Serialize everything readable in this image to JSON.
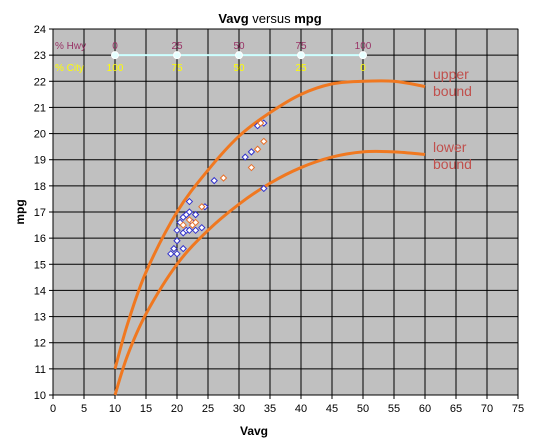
{
  "chart_data": {
    "type": "scatter",
    "title_parts": [
      "Vavg",
      " versus ",
      "mpg"
    ],
    "xlabel": "Vavg",
    "ylabel": "mpg",
    "xlim": [
      0,
      75
    ],
    "ylim": [
      10,
      24
    ],
    "x_ticks": [
      0,
      5,
      10,
      15,
      20,
      25,
      30,
      35,
      40,
      45,
      50,
      55,
      60,
      65,
      70,
      75
    ],
    "y_ticks": [
      10,
      11,
      12,
      13,
      14,
      15,
      16,
      17,
      18,
      19,
      20,
      21,
      22,
      23,
      24
    ],
    "grid": true,
    "plot_background": "#c0c0c0",
    "mix_scale": {
      "hwy_label": "% Hwy",
      "city_label": "% City",
      "y": 23,
      "x": [
        10,
        20,
        30,
        40,
        50
      ],
      "hwy": [
        "0",
        "25",
        "50",
        "75",
        "100"
      ],
      "city": [
        "100",
        "75",
        "50",
        "25",
        "0"
      ],
      "hwy_color": "#993366",
      "city_color": "#ffff00",
      "line_color": "#ccffff"
    },
    "curves": [
      {
        "label": "upper\nbound",
        "color": "#f07820",
        "x": [
          10,
          12,
          15,
          20,
          25,
          30,
          35,
          40,
          45,
          50,
          55,
          60
        ],
        "y": [
          11,
          12.7,
          14.7,
          17,
          18.6,
          19.9,
          20.8,
          21.5,
          21.9,
          22,
          22,
          21.8
        ]
      },
      {
        "label": "lower\nbound",
        "color": "#f07820",
        "x": [
          10,
          12,
          15,
          20,
          25,
          30,
          35,
          40,
          45,
          50,
          55,
          60
        ],
        "y": [
          10,
          11.5,
          13.1,
          15,
          16.3,
          17.3,
          18.1,
          18.7,
          19.1,
          19.3,
          19.3,
          19.2
        ]
      }
    ],
    "series": [
      {
        "marker_color": "#3333cc",
        "points": [
          [
            19,
            15.4
          ],
          [
            19.5,
            15.6
          ],
          [
            20,
            15.4
          ],
          [
            20,
            15.9
          ],
          [
            20,
            16.3
          ],
          [
            20.5,
            16.6
          ],
          [
            21,
            15.6
          ],
          [
            21,
            16.2
          ],
          [
            21,
            16.8
          ],
          [
            21.5,
            16.3
          ],
          [
            21.5,
            16.9
          ],
          [
            22,
            17.4
          ],
          [
            22,
            17
          ],
          [
            22,
            16.3
          ],
          [
            22.5,
            16.6
          ],
          [
            23,
            16.9
          ],
          [
            23,
            16.3
          ],
          [
            24,
            16.4
          ],
          [
            24.5,
            17.2
          ],
          [
            26,
            18.2
          ],
          [
            31,
            19.1
          ],
          [
            32,
            19.3
          ],
          [
            33,
            20.3
          ],
          [
            34,
            20.4
          ],
          [
            34,
            17.9
          ]
        ]
      },
      {
        "marker_color": "#e8702a",
        "points": [
          [
            21,
            16.5
          ],
          [
            22,
            16.7
          ],
          [
            22.5,
            16.5
          ],
          [
            23,
            16.6
          ],
          [
            24,
            17.2
          ],
          [
            27.5,
            18.3
          ],
          [
            32,
            18.7
          ],
          [
            33,
            19.4
          ],
          [
            34,
            19.7
          ],
          [
            33.5,
            20.4
          ]
        ]
      }
    ]
  }
}
